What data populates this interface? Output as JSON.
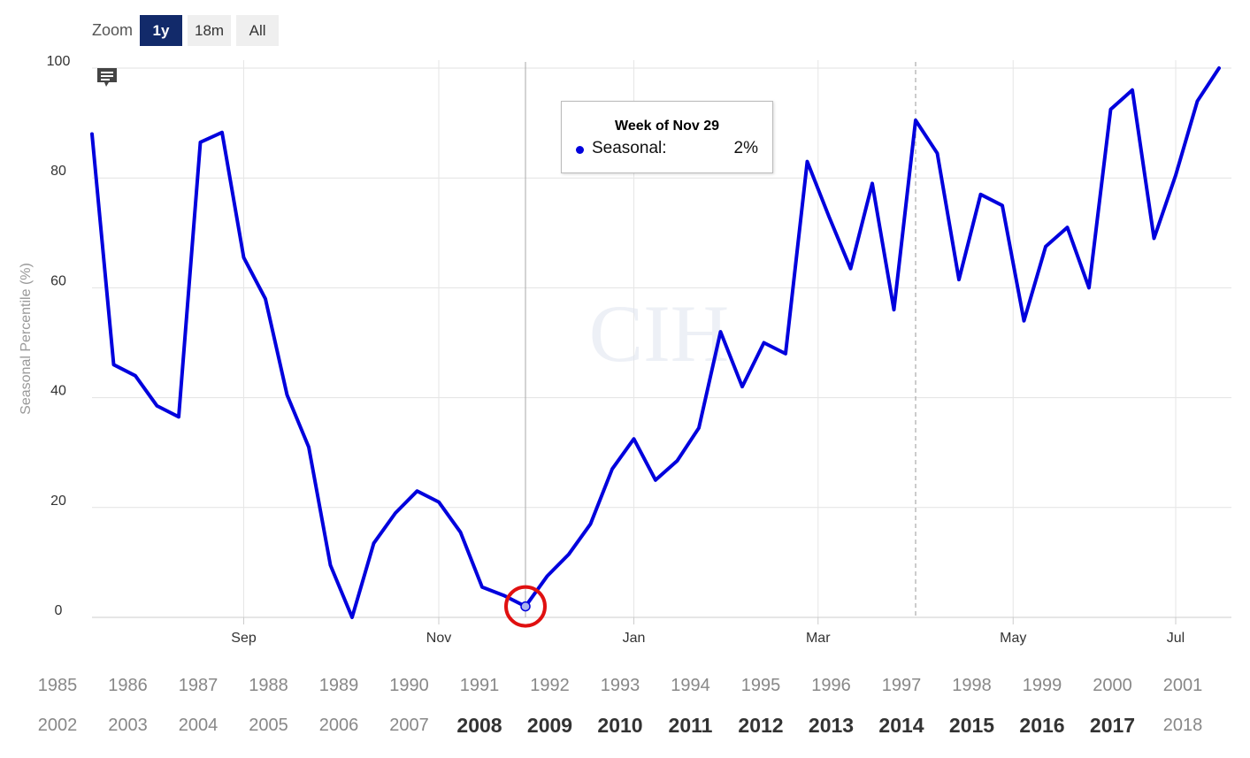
{
  "zoom": {
    "label": "Zoom",
    "buttons": [
      {
        "label": "1y",
        "active": true
      },
      {
        "label": "18m",
        "active": false
      },
      {
        "label": "All",
        "active": false
      }
    ]
  },
  "tooltip": {
    "title": "Week of Nov 29",
    "series_label": "Seasonal:",
    "value": "2%"
  },
  "watermark": "CIH",
  "colors": {
    "line": "#0000dd",
    "highlight_circle": "#e01010",
    "selected_zoom": "#122a6a"
  },
  "chart_data": {
    "type": "line",
    "title": "",
    "xlabel": "",
    "ylabel": "Seasonal Percentile (%)",
    "ylim": [
      0,
      100
    ],
    "yticks": [
      0,
      20,
      40,
      60,
      80,
      100
    ],
    "x_tick_labels": [
      "Sep",
      "Nov",
      "Jan",
      "Mar",
      "May",
      "Jul"
    ],
    "x_tick_week_index": [
      7,
      16,
      25,
      33.5,
      42.5,
      50
    ],
    "grid": true,
    "legend": "none",
    "highlight_index": 20,
    "dashed_marker_index": 38,
    "series": [
      {
        "values": [
          88,
          46,
          44,
          38.5,
          36.5,
          86.5,
          88.3,
          65.5,
          58,
          40.5,
          31,
          9.5,
          0,
          13.5,
          19,
          23,
          21,
          15.5,
          5.5,
          4,
          2,
          7.5,
          11.5,
          17,
          27,
          32.5,
          25,
          28.5,
          34.5,
          52,
          42,
          50,
          48,
          83,
          73,
          63.5,
          79,
          56,
          90.5,
          84.5,
          61.5,
          77,
          75,
          54,
          67.5,
          71,
          60,
          92.5,
          96,
          69,
          80.5,
          94,
          100
        ]
      }
    ]
  },
  "years_row_1": [
    {
      "label": "1985",
      "bold": false
    },
    {
      "label": "1986",
      "bold": false
    },
    {
      "label": "1987",
      "bold": false
    },
    {
      "label": "1988",
      "bold": false
    },
    {
      "label": "1989",
      "bold": false
    },
    {
      "label": "1990",
      "bold": false
    },
    {
      "label": "1991",
      "bold": false
    },
    {
      "label": "1992",
      "bold": false
    },
    {
      "label": "1993",
      "bold": false
    },
    {
      "label": "1994",
      "bold": false
    },
    {
      "label": "1995",
      "bold": false
    },
    {
      "label": "1996",
      "bold": false
    },
    {
      "label": "1997",
      "bold": false
    },
    {
      "label": "1998",
      "bold": false
    },
    {
      "label": "1999",
      "bold": false
    },
    {
      "label": "2000",
      "bold": false
    },
    {
      "label": "2001",
      "bold": false
    }
  ],
  "years_row_2": [
    {
      "label": "2002",
      "bold": false
    },
    {
      "label": "2003",
      "bold": false
    },
    {
      "label": "2004",
      "bold": false
    },
    {
      "label": "2005",
      "bold": false
    },
    {
      "label": "2006",
      "bold": false
    },
    {
      "label": "2007",
      "bold": false
    },
    {
      "label": "2008",
      "bold": true
    },
    {
      "label": "2009",
      "bold": true
    },
    {
      "label": "2010",
      "bold": true
    },
    {
      "label": "2011",
      "bold": true
    },
    {
      "label": "2012",
      "bold": true
    },
    {
      "label": "2013",
      "bold": true
    },
    {
      "label": "2014",
      "bold": true
    },
    {
      "label": "2015",
      "bold": true
    },
    {
      "label": "2016",
      "bold": true
    },
    {
      "label": "2017",
      "bold": true
    },
    {
      "label": "2018",
      "bold": false
    }
  ]
}
